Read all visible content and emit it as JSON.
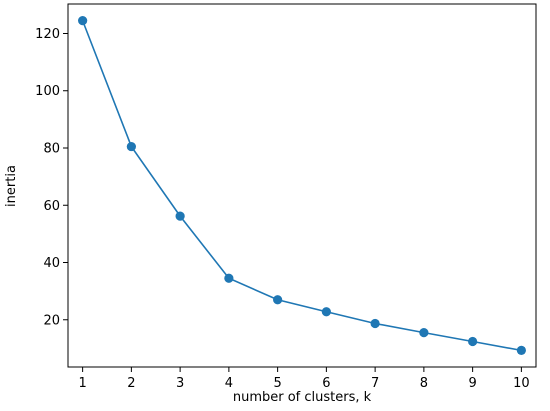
{
  "chart_data": {
    "type": "line",
    "title": "",
    "xlabel": "number of clusters, k",
    "ylabel": "inertia",
    "x": [
      1,
      2,
      3,
      4,
      5,
      6,
      7,
      8,
      9,
      10
    ],
    "series": [
      {
        "values": [
          124.5,
          80.5,
          56.2,
          34.5,
          27.0,
          22.8,
          18.7,
          15.5,
          12.4,
          9.3
        ],
        "color": "#1f77b4",
        "marker": "circle"
      }
    ],
    "xticks": [
      "1",
      "2",
      "3",
      "4",
      "5",
      "6",
      "7",
      "8",
      "9",
      "10"
    ],
    "yticks": [
      "20",
      "40",
      "60",
      "80",
      "100",
      "120"
    ],
    "xlim": [
      0.7,
      10.3
    ],
    "ylim": [
      3.5,
      130.3
    ],
    "grid": false,
    "legend": "none"
  }
}
